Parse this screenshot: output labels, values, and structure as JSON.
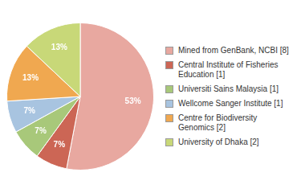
{
  "chart_data": {
    "type": "pie",
    "categories": [
      "Mined from GenBank, NCBI [8]",
      "Central Institute of Fisheries\nEducation [1]",
      "Universiti Sains Malaysia [1]",
      "Wellcome Sanger Institute [1]",
      "Centre for Biodiversity\nGenomics [2]",
      "University of Dhaka [2]"
    ],
    "values": [
      53,
      7,
      7,
      7,
      13,
      13
    ],
    "value_labels": [
      "53%",
      "7%",
      "7%",
      "7%",
      "13%",
      "13%"
    ],
    "colors": [
      "#e8a8a0",
      "#cc6655",
      "#a8c87a",
      "#a8c4e0",
      "#f0a850",
      "#c8d878"
    ],
    "data_labels": true,
    "legend": "right"
  }
}
